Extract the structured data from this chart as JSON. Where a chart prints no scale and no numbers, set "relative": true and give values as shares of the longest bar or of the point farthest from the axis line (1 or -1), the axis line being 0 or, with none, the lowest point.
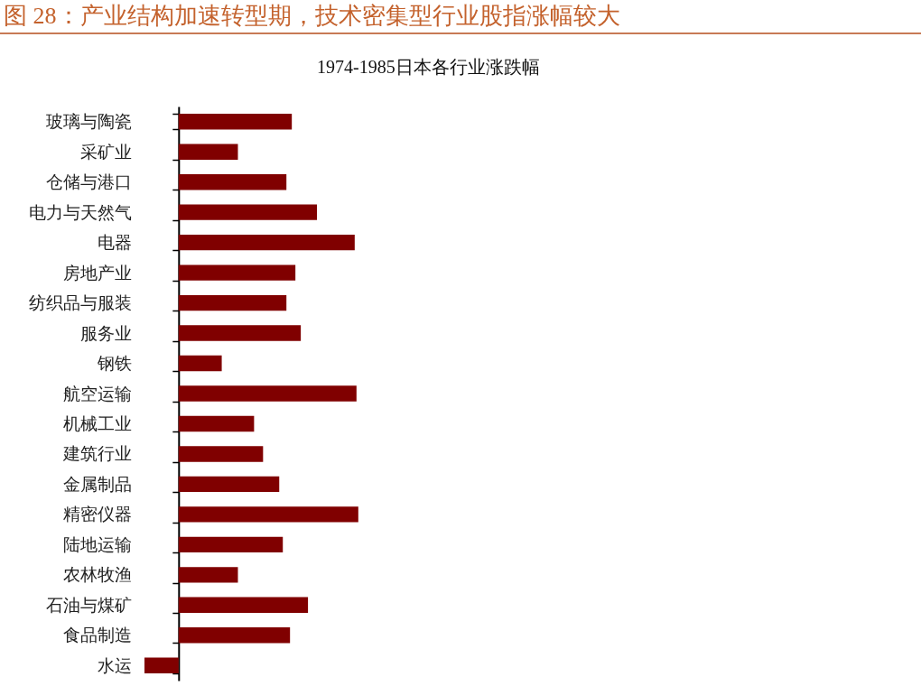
{
  "chart_data": {
    "type": "bar",
    "title": "图 28：产业结构加速转型期，技术密集型行业股指涨幅较大",
    "subtitle": "1974-1985日本各行业涨跌幅",
    "orientation": "horizontal",
    "relative": true,
    "color": "#800000",
    "categories": [
      "玻璃与陶瓷",
      "采矿业",
      "仓储与港口",
      "电力与天然气",
      "电器",
      "房地产业",
      "纺织品与服装",
      "服务业",
      "钢铁",
      "航空运输",
      "机械工业",
      "建筑行业",
      "金属制品",
      "精密仪器",
      "陆地运输",
      "农林牧渔",
      "石油与煤矿",
      "食品制造",
      "水运"
    ],
    "values": [
      0.63,
      0.33,
      0.6,
      0.77,
      0.98,
      0.65,
      0.6,
      0.68,
      0.24,
      0.99,
      0.42,
      0.47,
      0.56,
      1,
      0.58,
      0.33,
      0.72,
      0.62,
      -0.19
    ]
  }
}
